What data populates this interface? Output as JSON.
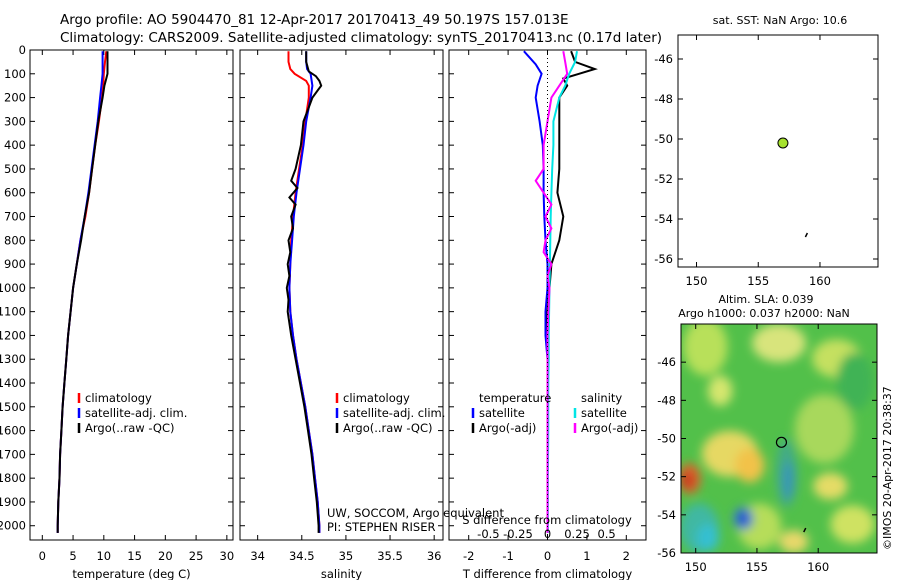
{
  "header": {
    "line1": "Argo profile: AO 5904470_81 12-Apr-2017 20170413_49 50.197S 157.013E",
    "line2": "Climatology: CARS2009. Satellite-adjusted climatology: synTS_20170413.nc (0.17d later)"
  },
  "credit": "UW, SOCCOM, Argo equivalent",
  "pi": "PI: STEPHEN RISER",
  "watermark": "©IMOS 20-Apr-2017 20:38:37",
  "sst_title": "sat. SST: NaN Argo: 10.6",
  "sla_title1": "Altim. SLA: 0.039",
  "sla_title2": "Argo h1000: 0.037 h2000: NaN",
  "colors": {
    "climatology": "#ff0000",
    "satellite": "#0000ff",
    "argo": "#000000",
    "sat_salinity": "#00e5e5",
    "argo_salinity": "#ff00ff",
    "float_marker": "#a6e22e"
  },
  "chart_data": [
    {
      "id": "temperature",
      "type": "line",
      "xlabel": "temperature (deg C)",
      "xlim": [
        -2,
        31
      ],
      "xticks": [
        0,
        5,
        10,
        15,
        20,
        25,
        30
      ],
      "xtick_labels": [
        "0",
        "5",
        "10",
        "15",
        "20",
        "25",
        "30"
      ],
      "ylim": [
        0,
        2060
      ],
      "yticks": [
        0,
        100,
        200,
        300,
        400,
        500,
        600,
        700,
        800,
        900,
        1000,
        1100,
        1200,
        1300,
        1400,
        1500,
        1600,
        1700,
        1800,
        1900,
        2000
      ],
      "ytick_labels": [
        "0",
        "100",
        "200",
        "300",
        "400",
        "500",
        "600",
        "700",
        "800",
        "900",
        "1000",
        "1100",
        "1200",
        "1300",
        "1400",
        "1500",
        "1600",
        "1700",
        "1800",
        "1900",
        "2000"
      ],
      "legend": [
        "climatology",
        "satellite-adj. clim.",
        "Argo(..raw -QC)"
      ],
      "series": [
        {
          "name": "climatology",
          "color": "#ff0000",
          "y": [
            5,
            50,
            100,
            150,
            200,
            300,
            400,
            500,
            600,
            700,
            800,
            900,
            1000,
            1100,
            1200,
            1300,
            1400,
            1500,
            1600,
            1700,
            1800,
            1900,
            2000,
            2030
          ],
          "x": [
            10.4,
            10.2,
            10.0,
            9.9,
            9.7,
            9.2,
            8.6,
            8.1,
            7.6,
            7.0,
            6.2,
            5.6,
            5.0,
            4.6,
            4.2,
            3.9,
            3.6,
            3.3,
            3.1,
            2.9,
            2.8,
            2.6,
            2.5,
            2.5
          ]
        },
        {
          "name": "satellite-adj. clim.",
          "color": "#0000ff",
          "y": [
            5,
            50,
            100,
            150,
            200,
            300,
            400,
            500,
            600,
            700,
            800,
            900,
            1000,
            1100,
            1200,
            1300,
            1400,
            1500,
            1600,
            1700,
            1800,
            1900,
            2000,
            2030
          ],
          "x": [
            9.8,
            9.8,
            9.8,
            9.6,
            9.4,
            9.0,
            8.5,
            8.0,
            7.5,
            6.9,
            6.2,
            5.6,
            5.0,
            4.6,
            4.2,
            3.9,
            3.6,
            3.3,
            3.1,
            2.9,
            2.8,
            2.6,
            2.5,
            2.5
          ]
        },
        {
          "name": "Argo(..raw -QC)",
          "color": "#000000",
          "y": [
            5,
            50,
            100,
            120,
            150,
            200,
            300,
            400,
            500,
            600,
            700,
            800,
            900,
            1000,
            1100,
            1200,
            1300,
            1400,
            1500,
            1600,
            1700,
            1800,
            1900,
            2000,
            2030
          ],
          "x": [
            10.6,
            10.6,
            10.6,
            10.4,
            10.1,
            9.8,
            9.1,
            8.6,
            8.1,
            7.6,
            6.9,
            6.3,
            5.6,
            5.0,
            4.6,
            4.2,
            3.9,
            3.6,
            3.3,
            3.1,
            2.9,
            2.8,
            2.6,
            2.5,
            2.5
          ]
        }
      ]
    },
    {
      "id": "salinity",
      "type": "line",
      "xlabel": "salinity",
      "xlim": [
        33.8,
        36.1
      ],
      "xticks": [
        34,
        34.5,
        35,
        35.5,
        36
      ],
      "xtick_labels": [
        "34",
        "34.5",
        "35",
        "35.5",
        "36"
      ],
      "ylim": [
        0,
        2060
      ],
      "legend": [
        "climatology",
        "satellite-adj. clim.",
        "Argo(..raw -QC)"
      ],
      "series": [
        {
          "name": "climatology",
          "color": "#ff0000",
          "y": [
            5,
            50,
            80,
            100,
            130,
            150,
            200,
            300,
            400,
            500,
            600,
            700,
            800,
            900,
            1000,
            1100,
            1200,
            1300,
            1400,
            1500,
            1600,
            1700,
            1800,
            1900,
            2000,
            2030
          ],
          "x": [
            34.35,
            34.35,
            34.37,
            34.42,
            34.55,
            34.58,
            34.58,
            34.54,
            34.51,
            34.47,
            34.43,
            34.4,
            34.38,
            34.37,
            34.36,
            34.37,
            34.4,
            34.44,
            34.49,
            34.54,
            34.58,
            34.62,
            34.65,
            34.68,
            34.7,
            34.7
          ]
        },
        {
          "name": "satellite-adj. clim.",
          "color": "#0000ff",
          "y": [
            5,
            50,
            80,
            100,
            150,
            200,
            300,
            400,
            500,
            600,
            700,
            800,
            900,
            1000,
            1100,
            1200,
            1300,
            1400,
            1500,
            1600,
            1700,
            1800,
            1900,
            2000,
            2030
          ],
          "x": [
            34.55,
            34.55,
            34.56,
            34.6,
            34.62,
            34.6,
            34.55,
            34.52,
            34.48,
            34.44,
            34.41,
            34.39,
            34.37,
            34.36,
            34.37,
            34.4,
            34.44,
            34.49,
            34.54,
            34.58,
            34.62,
            34.65,
            34.68,
            34.7,
            34.7
          ]
        },
        {
          "name": "Argo(..raw -QC)",
          "color": "#000000",
          "y": [
            5,
            50,
            90,
            110,
            130,
            150,
            170,
            200,
            250,
            300,
            400,
            500,
            550,
            580,
            620,
            650,
            700,
            750,
            800,
            850,
            900,
            950,
            1000,
            1050,
            1100,
            1200,
            1300,
            1400,
            1500,
            1600,
            1700,
            1800,
            1900,
            2000,
            2030
          ],
          "x": [
            34.55,
            34.55,
            34.58,
            34.66,
            34.7,
            34.72,
            34.68,
            34.62,
            34.57,
            34.52,
            34.49,
            34.43,
            34.38,
            34.45,
            34.36,
            34.43,
            34.38,
            34.4,
            34.35,
            34.37,
            34.34,
            34.36,
            34.33,
            34.35,
            34.34,
            34.38,
            34.43,
            34.48,
            34.53,
            34.57,
            34.61,
            34.64,
            34.67,
            34.69,
            34.69
          ]
        }
      ]
    },
    {
      "id": "difference",
      "type": "line",
      "xlabel": "T difference from climatology",
      "xlabel2": "S difference from climatology",
      "xlim": [
        -2.5,
        2.5
      ],
      "xticks": [
        -2,
        -1,
        0,
        1,
        2
      ],
      "xtick_labels": [
        "-2",
        "-1",
        "0",
        "1",
        "2"
      ],
      "sxticks": [
        -1.5,
        -0.75,
        0,
        0.75,
        1.5
      ],
      "sxtick_labels": [
        "-0.5",
        "-0.25",
        "0",
        "0.25",
        "0.5"
      ],
      "ylim": [
        0,
        2060
      ],
      "legend_temperature": [
        "temperature",
        "satellite",
        "Argo(-adj)"
      ],
      "legend_salinity": [
        "salinity",
        "satellite",
        "Argo(-adj)"
      ],
      "series": [
        {
          "name": "satellite",
          "color": "#0000ff",
          "y": [
            5,
            60,
            100,
            150,
            200,
            300,
            400,
            500,
            600,
            700,
            800,
            900,
            1000,
            1100,
            1200,
            1300,
            1400,
            1600,
            1800,
            2000,
            2030
          ],
          "x": [
            -0.6,
            -0.3,
            -0.15,
            -0.25,
            -0.3,
            -0.2,
            -0.12,
            -0.1,
            -0.1,
            -0.08,
            -0.05,
            0,
            0,
            -0.05,
            -0.05,
            0,
            0,
            0,
            0,
            0,
            0
          ]
        },
        {
          "name": "Argo(-adj)",
          "color": "#000000",
          "y": [
            5,
            50,
            80,
            100,
            120,
            150,
            200,
            300,
            400,
            500,
            600,
            700,
            800,
            900,
            1000,
            1100,
            1300,
            1500,
            1700,
            1900,
            2030
          ],
          "x": [
            0.6,
            0.7,
            1.2,
            0.8,
            0.4,
            0.5,
            0.3,
            0.3,
            0.3,
            0.3,
            0.25,
            0.4,
            0.3,
            0.1,
            0.05,
            0,
            0,
            0,
            0,
            0,
            0
          ]
        },
        {
          "name": "satellite",
          "color": "#00e5e5",
          "y": [
            5,
            50,
            100,
            150,
            200,
            300,
            400,
            500,
            600,
            700,
            800,
            900,
            1000,
            1100,
            1200,
            1300,
            1400,
            1600,
            1800,
            2000,
            2030
          ],
          "x": [
            0.75,
            0.7,
            0.55,
            0.45,
            0.3,
            0.15,
            0.15,
            0.12,
            0.1,
            0.08,
            0.07,
            0.06,
            0.05,
            0.04,
            0.03,
            0.03,
            0.02,
            0.02,
            0.01,
            0.01,
            0.01
          ]
        },
        {
          "name": "Argo(-adj)",
          "color": "#ff00ff",
          "y": [
            5,
            50,
            100,
            150,
            200,
            300,
            400,
            500,
            550,
            600,
            650,
            700,
            750,
            800,
            850,
            900,
            950,
            1000,
            1100,
            1200,
            1400,
            1600,
            1800,
            2030
          ],
          "x": [
            0.4,
            0.45,
            0.5,
            0.3,
            0.1,
            0.0,
            -0.1,
            -0.1,
            -0.3,
            -0.1,
            0.1,
            -0.05,
            0.1,
            -0.05,
            -0.1,
            0.1,
            0.0,
            0.05,
            0.02,
            0.0,
            0.0,
            0.0,
            0.0,
            0.0
          ]
        }
      ]
    },
    {
      "id": "sst_map",
      "type": "scatter",
      "xlim": [
        148.5,
        164.7
      ],
      "ylim": [
        -56.4,
        -44.8
      ],
      "xticks": [
        150,
        155,
        160
      ],
      "xtick_labels": [
        "150",
        "155",
        "160"
      ],
      "yticks": [
        -46,
        -48,
        -50,
        -52,
        -54,
        -56
      ],
      "ytick_labels": [
        "-46",
        "-48",
        "-50",
        "-52",
        "-54",
        "-56"
      ],
      "points": [
        {
          "x": 157.0,
          "y": -50.2
        }
      ],
      "mark": {
        "x": 158.9,
        "y": -54.8
      }
    },
    {
      "id": "sla_map",
      "type": "heatmap",
      "xlim": [
        148.8,
        164.8
      ],
      "ylim": [
        -56,
        -44
      ],
      "xticks": [
        150,
        155,
        160
      ],
      "xtick_labels": [
        "150",
        "155",
        "160"
      ],
      "yticks": [
        -46,
        -48,
        -50,
        -52,
        -54,
        -56
      ],
      "ytick_labels": [
        "-46",
        "-48",
        "-50",
        "-52",
        "-54",
        "-56"
      ],
      "points": [
        {
          "x": 157.0,
          "y": -50.2
        }
      ],
      "mark": {
        "x": 158.9,
        "y": -54.8
      },
      "base_color": "#52c04a",
      "blobs": [
        {
          "x": 150.8,
          "y": -45.2,
          "rx": 1.8,
          "ry": 1.5,
          "c": "#b8e05a"
        },
        {
          "x": 156.8,
          "y": -45.0,
          "rx": 2.2,
          "ry": 1.0,
          "c": "#d8e47c"
        },
        {
          "x": 161.5,
          "y": -45.8,
          "rx": 2.0,
          "ry": 1.0,
          "c": "#c5e060"
        },
        {
          "x": 152.0,
          "y": -47.5,
          "rx": 1.0,
          "ry": 0.8,
          "c": "#d5e66e"
        },
        {
          "x": 160.5,
          "y": -49.5,
          "rx": 2.4,
          "ry": 1.8,
          "c": "#a8d85c"
        },
        {
          "x": 163.0,
          "y": -47.0,
          "rx": 1.5,
          "ry": 1.5,
          "c": "#3fb354"
        },
        {
          "x": 152.8,
          "y": -50.8,
          "rx": 2.3,
          "ry": 1.2,
          "c": "#e6d864"
        },
        {
          "x": 154.4,
          "y": -51.4,
          "rx": 1.2,
          "ry": 0.9,
          "c": "#f2c24a"
        },
        {
          "x": 149.5,
          "y": -52.1,
          "rx": 0.9,
          "ry": 0.8,
          "c": "#e0602a"
        },
        {
          "x": 149.3,
          "y": -52.2,
          "rx": 0.5,
          "ry": 0.4,
          "c": "#c2331a"
        },
        {
          "x": 157.4,
          "y": -51.8,
          "rx": 0.8,
          "ry": 1.8,
          "c": "#42aa88"
        },
        {
          "x": 157.6,
          "y": -52.2,
          "rx": 0.5,
          "ry": 1.0,
          "c": "#3896b8"
        },
        {
          "x": 161.0,
          "y": -52.5,
          "rx": 1.4,
          "ry": 0.7,
          "c": "#e5dc66"
        },
        {
          "x": 162.8,
          "y": -54.5,
          "rx": 1.8,
          "ry": 1.0,
          "c": "#cfe262"
        },
        {
          "x": 155.2,
          "y": -54.6,
          "rx": 1.8,
          "ry": 1.2,
          "c": "#b6dd5a"
        },
        {
          "x": 150.3,
          "y": -54.7,
          "rx": 1.6,
          "ry": 1.3,
          "c": "#3fb8a2"
        },
        {
          "x": 151.0,
          "y": -55.2,
          "rx": 0.9,
          "ry": 0.7,
          "c": "#35bfd2"
        },
        {
          "x": 153.9,
          "y": -54.2,
          "rx": 0.8,
          "ry": 0.6,
          "c": "#3a7fd0"
        },
        {
          "x": 153.9,
          "y": -54.2,
          "rx": 0.4,
          "ry": 0.35,
          "c": "#1f3fcf"
        },
        {
          "x": 158.0,
          "y": -55.4,
          "rx": 1.2,
          "ry": 0.6,
          "c": "#e8d86a"
        }
      ]
    }
  ]
}
